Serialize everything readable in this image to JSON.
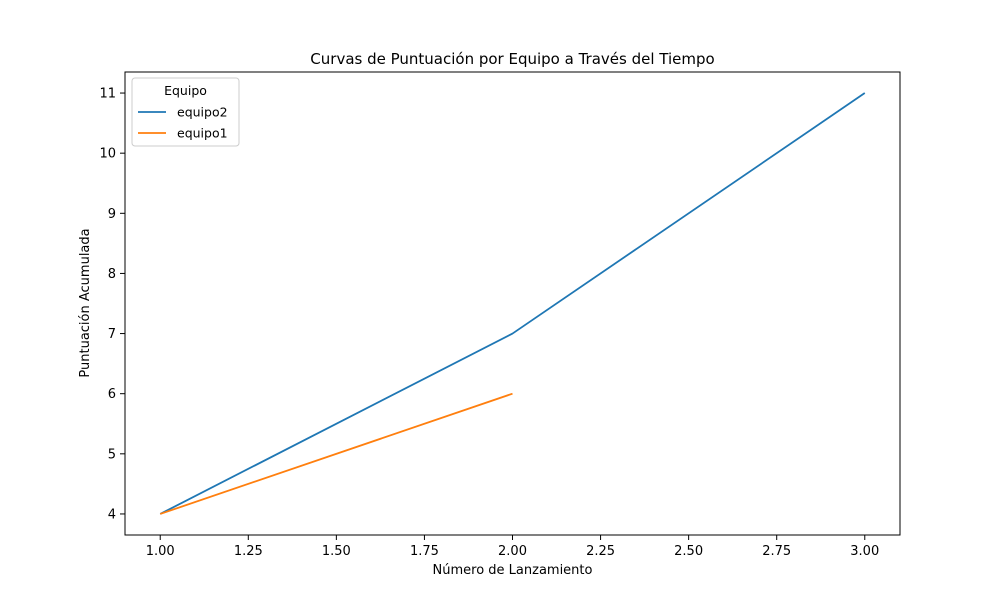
{
  "chart_data": {
    "type": "line",
    "title": "Curvas de Puntuación por Equipo a Través del Tiempo",
    "xlabel": "Número de Lanzamiento",
    "ylabel": "Puntuación Acumulada",
    "xlim": [
      0.9,
      3.1
    ],
    "ylim": [
      3.65,
      11.35
    ],
    "xticks": [
      1.0,
      1.25,
      1.5,
      1.75,
      2.0,
      2.25,
      2.5,
      2.75,
      3.0
    ],
    "xtick_labels": [
      "1.00",
      "1.25",
      "1.50",
      "1.75",
      "2.00",
      "2.25",
      "2.50",
      "2.75",
      "3.00"
    ],
    "yticks": [
      4,
      5,
      6,
      7,
      8,
      9,
      10,
      11
    ],
    "ytick_labels": [
      "4",
      "5",
      "6",
      "7",
      "8",
      "9",
      "10",
      "11"
    ],
    "grid": false,
    "legend": {
      "title": "Equipo",
      "placement": "top-left"
    },
    "series": [
      {
        "name": "equipo2",
        "color": "#1f77b4",
        "x": [
          1,
          2,
          3
        ],
        "y": [
          4,
          7,
          11
        ]
      },
      {
        "name": "equipo1",
        "color": "#ff7f0e",
        "x": [
          1,
          2
        ],
        "y": [
          4,
          6
        ]
      }
    ]
  }
}
